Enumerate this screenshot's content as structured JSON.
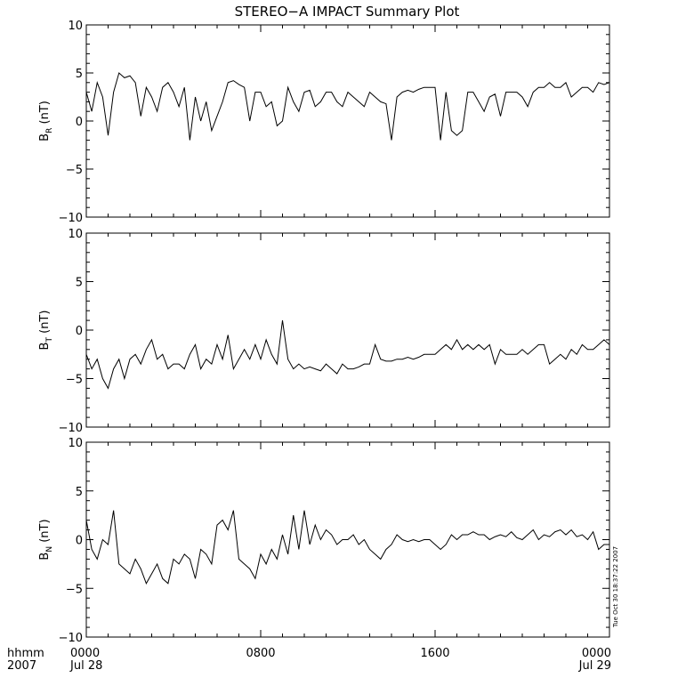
{
  "title": "STEREO−A IMPACT Summary Plot",
  "bottom_left": {
    "line1": "hhmm",
    "line2": "2007"
  },
  "timestamp": "Tue Oct 30 18:37:22 2007",
  "colors": {
    "line": "#000000",
    "background": "#ffffff"
  },
  "chart_data": [
    {
      "type": "line",
      "ylabel": "B_R (nT)",
      "ylabel_main": "B",
      "ylabel_sub": "R",
      "ylabel_unit": " (nT)",
      "ylim": [
        -10,
        10
      ],
      "yticks": [
        10,
        5,
        0,
        -5,
        -10
      ],
      "ytick_labels": [
        "10",
        "5",
        "0",
        "−5",
        "−10"
      ],
      "xlim": [
        0,
        24
      ],
      "grid": false,
      "series": [
        {
          "x": [
            0,
            0.25,
            0.5,
            0.75,
            1,
            1.25,
            1.5,
            1.75,
            2,
            2.25,
            2.5,
            2.75,
            3,
            3.25,
            3.5,
            3.75,
            4,
            4.25,
            4.5,
            4.75,
            5,
            5.25,
            5.5,
            5.75,
            6,
            6.25,
            6.5,
            6.75,
            7,
            7.25,
            7.5,
            7.75,
            8,
            8.25,
            8.5,
            8.75,
            9,
            9.25,
            9.5,
            9.75,
            10,
            10.25,
            10.5,
            10.75,
            11,
            11.25,
            11.5,
            11.75,
            12,
            12.25,
            12.5,
            12.75,
            13,
            13.25,
            13.5,
            13.75,
            14,
            14.25,
            14.5,
            14.75,
            15,
            15.25,
            15.5,
            15.75,
            16,
            16.25,
            16.5,
            16.75,
            17,
            17.25,
            17.5,
            17.75,
            18,
            18.25,
            18.5,
            18.75,
            19,
            19.25,
            19.5,
            19.75,
            20,
            20.25,
            20.5,
            20.75,
            21,
            21.25,
            21.5,
            21.75,
            22,
            22.25,
            22.5,
            22.75,
            23,
            23.25,
            23.5,
            23.75,
            24
          ],
          "y": [
            3.0,
            1.0,
            4.0,
            2.5,
            -1.5,
            3.0,
            5.0,
            4.5,
            4.7,
            4.0,
            0.5,
            3.5,
            2.5,
            1.0,
            3.5,
            4.0,
            3.0,
            1.5,
            3.5,
            -2.0,
            2.5,
            0.0,
            2.0,
            -1.0,
            0.5,
            2.0,
            4.0,
            4.2,
            3.8,
            3.5,
            0.0,
            3.0,
            3.0,
            1.5,
            2.0,
            -0.5,
            0.0,
            3.5,
            2.0,
            1.0,
            3.0,
            3.2,
            1.5,
            2.0,
            3.0,
            3.0,
            2.0,
            1.5,
            3.0,
            2.5,
            2.0,
            1.5,
            3.0,
            2.5,
            2.0,
            1.8,
            -2.0,
            2.5,
            3.0,
            3.2,
            3.0,
            3.3,
            3.5,
            3.5,
            3.5,
            -2.0,
            3.0,
            -1.0,
            -1.5,
            -1.0,
            3.0,
            3.0,
            2.0,
            1.0,
            2.5,
            2.8,
            0.5,
            3.0,
            3.0,
            3.0,
            2.5,
            1.5,
            3.0,
            3.5,
            3.5,
            4.0,
            3.5,
            3.5,
            4.0,
            2.5,
            3.0,
            3.5,
            3.5,
            3.0,
            4.0,
            3.8,
            4.0
          ]
        }
      ]
    },
    {
      "type": "line",
      "ylabel": "B_T (nT)",
      "ylabel_main": "B",
      "ylabel_sub": "T",
      "ylabel_unit": " (nT)",
      "ylim": [
        -10,
        10
      ],
      "yticks": [
        10,
        5,
        0,
        -5,
        -10
      ],
      "ytick_labels": [
        "10",
        "5",
        "0",
        "−5",
        "−10"
      ],
      "xlim": [
        0,
        24
      ],
      "grid": false,
      "series": [
        {
          "x": [
            0,
            0.25,
            0.5,
            0.75,
            1,
            1.25,
            1.5,
            1.75,
            2,
            2.25,
            2.5,
            2.75,
            3,
            3.25,
            3.5,
            3.75,
            4,
            4.25,
            4.5,
            4.75,
            5,
            5.25,
            5.5,
            5.75,
            6,
            6.25,
            6.5,
            6.75,
            7,
            7.25,
            7.5,
            7.75,
            8,
            8.25,
            8.5,
            8.75,
            9,
            9.25,
            9.5,
            9.75,
            10,
            10.25,
            10.5,
            10.75,
            11,
            11.25,
            11.5,
            11.75,
            12,
            12.25,
            12.5,
            12.75,
            13,
            13.25,
            13.5,
            13.75,
            14,
            14.25,
            14.5,
            14.75,
            15,
            15.25,
            15.5,
            15.75,
            16,
            16.25,
            16.5,
            16.75,
            17,
            17.25,
            17.5,
            17.75,
            18,
            18.25,
            18.5,
            18.75,
            19,
            19.25,
            19.5,
            19.75,
            20,
            20.25,
            20.5,
            20.75,
            21,
            21.25,
            21.5,
            21.75,
            22,
            22.25,
            22.5,
            22.75,
            23,
            23.25,
            23.5,
            23.75,
            24
          ],
          "y": [
            -2.5,
            -4.0,
            -3.0,
            -5.0,
            -6.0,
            -4.0,
            -3.0,
            -5.0,
            -3.0,
            -2.5,
            -3.5,
            -2.0,
            -1.0,
            -3.0,
            -2.5,
            -4.0,
            -3.5,
            -3.5,
            -4.0,
            -2.5,
            -1.5,
            -4.0,
            -3.0,
            -3.5,
            -1.5,
            -3.0,
            -0.5,
            -4.0,
            -3.0,
            -2.0,
            -3.0,
            -1.5,
            -3.0,
            -1.0,
            -2.5,
            -3.5,
            1.0,
            -3.0,
            -4.0,
            -3.5,
            -4.0,
            -3.8,
            -4.0,
            -4.2,
            -3.5,
            -4.0,
            -4.5,
            -3.5,
            -4.0,
            -4.0,
            -3.8,
            -3.5,
            -3.5,
            -1.5,
            -3.0,
            -3.2,
            -3.2,
            -3.0,
            -3.0,
            -2.8,
            -3.0,
            -2.8,
            -2.5,
            -2.5,
            -2.5,
            -2.0,
            -1.5,
            -2.0,
            -1.0,
            -2.0,
            -1.5,
            -2.0,
            -1.5,
            -2.0,
            -1.5,
            -3.5,
            -2.0,
            -2.5,
            -2.5,
            -2.5,
            -2.0,
            -2.5,
            -2.0,
            -1.5,
            -1.5,
            -3.5,
            -3.0,
            -2.5,
            -3.0,
            -2.0,
            -2.5,
            -1.5,
            -2.0,
            -2.0,
            -1.5,
            -1.0,
            -1.5
          ]
        }
      ]
    },
    {
      "type": "line",
      "ylabel": "B_N (nT)",
      "ylabel_main": "B",
      "ylabel_sub": "N",
      "ylabel_unit": " (nT)",
      "ylim": [
        -10,
        10
      ],
      "yticks": [
        10,
        5,
        0,
        -5,
        -10
      ],
      "ytick_labels": [
        "10",
        "5",
        "0",
        "−5",
        "−10"
      ],
      "xlim": [
        0,
        24
      ],
      "xticks": [
        0,
        8,
        16,
        24
      ],
      "xtick_labels": [
        "0000",
        "0800",
        "1600",
        "0000"
      ],
      "date_labels": [
        {
          "x": 0,
          "label": "Jul 28"
        },
        {
          "x": 24,
          "label": "Jul 29"
        }
      ],
      "grid": false,
      "series": [
        {
          "x": [
            0,
            0.25,
            0.5,
            0.75,
            1,
            1.25,
            1.5,
            1.75,
            2,
            2.25,
            2.5,
            2.75,
            3,
            3.25,
            3.5,
            3.75,
            4,
            4.25,
            4.5,
            4.75,
            5,
            5.25,
            5.5,
            5.75,
            6,
            6.25,
            6.5,
            6.75,
            7,
            7.25,
            7.5,
            7.75,
            8,
            8.25,
            8.5,
            8.75,
            9,
            9.25,
            9.5,
            9.75,
            10,
            10.25,
            10.5,
            10.75,
            11,
            11.25,
            11.5,
            11.75,
            12,
            12.25,
            12.5,
            12.75,
            13,
            13.25,
            13.5,
            13.75,
            14,
            14.25,
            14.5,
            14.75,
            15,
            15.25,
            15.5,
            15.75,
            16,
            16.25,
            16.5,
            16.75,
            17,
            17.25,
            17.5,
            17.75,
            18,
            18.25,
            18.5,
            18.75,
            19,
            19.25,
            19.5,
            19.75,
            20,
            20.25,
            20.5,
            20.75,
            21,
            21.25,
            21.5,
            21.75,
            22,
            22.25,
            22.5,
            22.75,
            23,
            23.25,
            23.5,
            23.75,
            24
          ],
          "y": [
            2.0,
            -1.0,
            -2.0,
            0.0,
            -0.5,
            3.0,
            -2.5,
            -3.0,
            -3.5,
            -2.0,
            -3.0,
            -4.5,
            -3.5,
            -2.5,
            -4.0,
            -4.5,
            -2.0,
            -2.5,
            -1.5,
            -2.0,
            -4.0,
            -1.0,
            -1.5,
            -2.5,
            1.5,
            2.0,
            1.0,
            3.0,
            -2.0,
            -2.5,
            -3.0,
            -4.0,
            -1.5,
            -2.5,
            -1.0,
            -2.0,
            0.5,
            -1.5,
            2.5,
            -1.0,
            3.0,
            -0.5,
            1.5,
            0.0,
            1.0,
            0.5,
            -0.5,
            0.0,
            0.0,
            0.5,
            -0.5,
            0.0,
            -1.0,
            -1.5,
            -2.0,
            -1.0,
            -0.5,
            0.5,
            0.0,
            -0.2,
            0.0,
            -0.2,
            0.0,
            0.0,
            -0.5,
            -1.0,
            -0.5,
            0.5,
            0.0,
            0.5,
            0.5,
            0.8,
            0.5,
            0.5,
            0.0,
            0.3,
            0.5,
            0.3,
            0.8,
            0.2,
            0.0,
            0.5,
            1.0,
            0.0,
            0.5,
            0.3,
            0.8,
            1.0,
            0.5,
            1.0,
            0.3,
            0.5,
            0.0,
            0.8,
            -1.0,
            -0.5,
            -0.5
          ]
        }
      ]
    }
  ]
}
